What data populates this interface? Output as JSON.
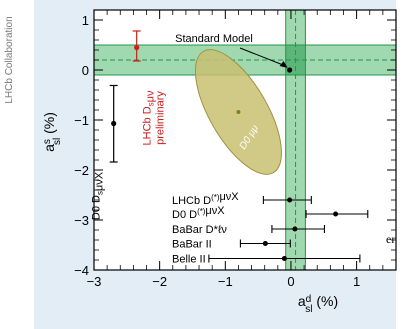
{
  "watermark": "LHCb Collaboration",
  "stray_text": "er",
  "chart_data": {
    "type": "scatter",
    "xlabel": "a",
    "xlabel_sub": "sl",
    "xlabel_sup": "d",
    "xlabel_unit": "(%)",
    "ylabel": "a",
    "ylabel_sub": "sl",
    "ylabel_sup": "s",
    "ylabel_unit": "(%)",
    "xlim": [
      -3,
      1.6
    ],
    "ylim": [
      -4,
      1.2
    ],
    "xticks": [
      -3,
      -2,
      -1,
      0,
      1
    ],
    "yticks": [
      1,
      0,
      -1,
      -2,
      -3,
      -4
    ],
    "grid": false,
    "standard_model": {
      "label": "Standard Model",
      "x": -0.02,
      "y": 0.0
    },
    "bands": {
      "x_band": {
        "center": 0.07,
        "half_width": 0.15
      },
      "y_band": {
        "center": 0.2,
        "half_width": 0.3
      }
    },
    "ellipse": {
      "label": "D0 μμ",
      "cx": -0.8,
      "cy": -0.84,
      "rx": 0.44,
      "ry": 1.4,
      "angle_deg": 30
    },
    "vertical_points": [
      {
        "label_parts": [
          "D0 D",
          "s",
          "μνX"
        ],
        "x": -2.7,
        "y": -1.07,
        "err_low": 0.77,
        "err_high": 0.76,
        "color": "#000000"
      },
      {
        "label_parts": [
          "LHCb D",
          "s",
          "μν"
        ],
        "label_line2": "preliminary",
        "x": -2.35,
        "y": 0.45,
        "err_low": 0.27,
        "err_high": 0.33,
        "color": "#cc1f1f"
      }
    ],
    "horizontal_points": [
      {
        "label_parts": [
          "LHCb D",
          "(*)",
          "μνX"
        ],
        "x": -0.02,
        "y": -2.6,
        "err_low": 0.4,
        "err_high": 0.33
      },
      {
        "label_parts": [
          "D0 D",
          "(*)",
          "μνX"
        ],
        "x": 0.68,
        "y": -2.88,
        "err_low": 0.45,
        "err_high": 0.49
      },
      {
        "label_parts": [
          "BaBar D*",
          "",
          "ℓν"
        ],
        "x": 0.06,
        "y": -3.18,
        "err_low": 0.35,
        "err_high": 0.45
      },
      {
        "label_parts": [
          "BaBar II",
          "",
          ""
        ],
        "x": -0.39,
        "y": -3.47,
        "err_low": 0.38,
        "err_high": 0.38
      },
      {
        "label_parts": [
          "Belle II",
          "",
          ""
        ],
        "x": -0.1,
        "y": -3.77,
        "err_low": 1.15,
        "err_high": 1.15
      }
    ],
    "colors": {
      "frame_bg": "#e2edf6",
      "plot_bg": "#ffffff",
      "band_fill": "#8fd1a1",
      "band_overlap": "#5cb67a",
      "band_line": "#25944b",
      "ellipse_fill": "#c9c172",
      "ellipse_line": "#9d9440",
      "ellipse_center": "#6f8a24",
      "lhcb_red": "#cc1f1f"
    }
  }
}
